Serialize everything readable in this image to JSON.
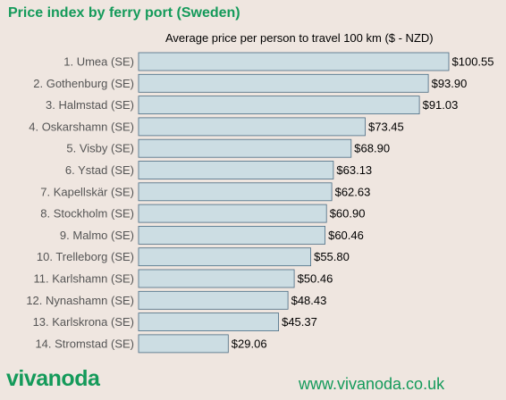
{
  "header": {
    "title": "Price index by ferry port (Sweden)"
  },
  "footer": {
    "logo": "vivanoda",
    "url": "www.vivanoda.co.uk"
  },
  "colors": {
    "brand": "#149a5a",
    "bar_fill": "#ccdde3",
    "bar_stroke": "#4a6b82",
    "background": "#efe6e0"
  },
  "chart_data": {
    "type": "bar",
    "orientation": "horizontal",
    "title": "Average price per person to travel 100 km ($ - NZD)",
    "xlabel": "",
    "ylabel": "",
    "xlim": [
      0,
      100.55
    ],
    "grid": false,
    "categories": [
      "1. Umea (SE)",
      "2. Gothenburg (SE)",
      "3. Halmstad (SE)",
      "4. Oskarshamn (SE)",
      "5. Visby (SE)",
      "6. Ystad (SE)",
      "7. Kapellskär (SE)",
      "8. Stockholm (SE)",
      "9. Malmo (SE)",
      "10. Trelleborg (SE)",
      "11. Karlshamn (SE)",
      "12. Nynashamn (SE)",
      "13. Karlskrona (SE)",
      "14. Stromstad (SE)"
    ],
    "values": [
      100.55,
      93.9,
      91.03,
      73.45,
      68.9,
      63.13,
      62.63,
      60.9,
      60.46,
      55.8,
      50.46,
      48.43,
      45.37,
      29.06
    ],
    "value_labels": [
      "$100.55",
      "$93.90",
      "$91.03",
      "$73.45",
      "$68.90",
      "$63.13",
      "$62.63",
      "$60.90",
      "$60.46",
      "$55.80",
      "$50.46",
      "$48.43",
      "$45.37",
      "$29.06"
    ]
  }
}
